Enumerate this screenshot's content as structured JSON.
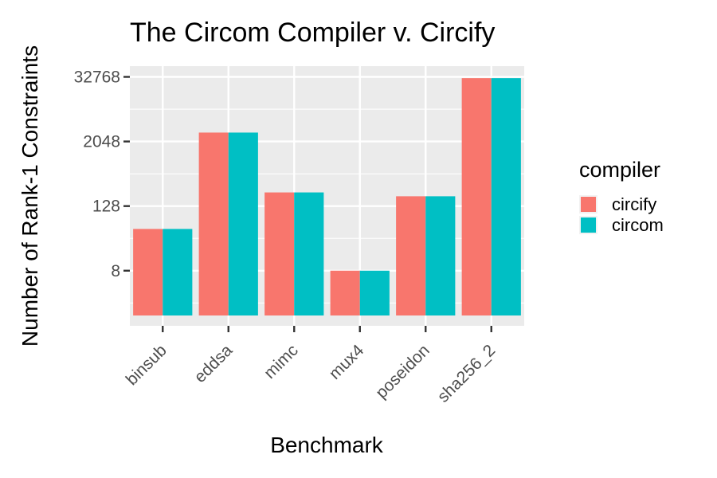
{
  "chart_data": {
    "type": "bar",
    "title": "The Circom Compiler v. Circify",
    "xlabel": "Benchmark",
    "ylabel": "Number of Rank-1 Constraints",
    "y_scale": "log2",
    "yticks": [
      "8",
      "128",
      "2048",
      "32768"
    ],
    "ylim": [
      0.75,
      52000
    ],
    "categories": [
      "binsub",
      "eddsa",
      "mimc",
      "mux4",
      "poseidon",
      "sha256_2"
    ],
    "series": [
      {
        "name": "circify",
        "color": "#F8766D",
        "values": [
          48,
          3000,
          230,
          8,
          195,
          31000
        ]
      },
      {
        "name": "circom",
        "color": "#00BFC4",
        "values": [
          48,
          3000,
          230,
          8,
          195,
          31000
        ]
      }
    ],
    "legend": {
      "title": "compiler",
      "position": "right"
    },
    "grid": true,
    "panel_color": "#EBEBEB"
  }
}
